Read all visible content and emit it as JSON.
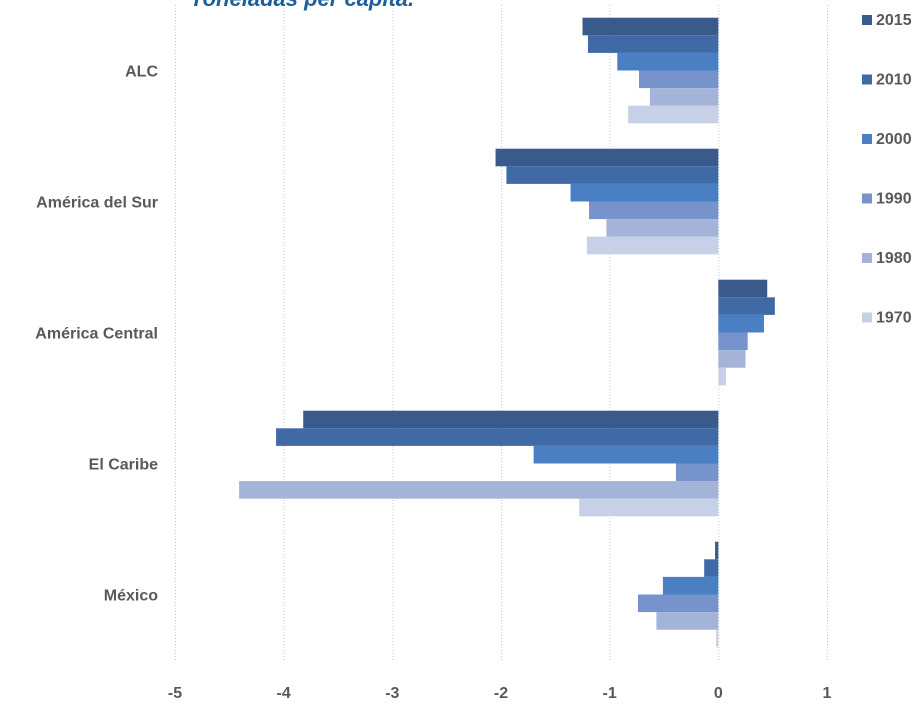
{
  "chart_data": {
    "type": "bar",
    "orientation": "horizontal",
    "title": "Toneladas per cápita.",
    "categories": [
      "ALC",
      "América del Sur",
      "América Central",
      "El Caribe",
      "México"
    ],
    "series": [
      {
        "name": "2015",
        "color": "#3a5a8c",
        "values": [
          -1.25,
          -2.05,
          0.45,
          -3.82,
          -0.03
        ]
      },
      {
        "name": "2010",
        "color": "#3f6aa6",
        "values": [
          -1.2,
          -1.95,
          0.52,
          -4.07,
          -0.13
        ]
      },
      {
        "name": "2000",
        "color": "#4a7fc4",
        "values": [
          -0.93,
          -1.36,
          0.42,
          -1.7,
          -0.51
        ]
      },
      {
        "name": "1990",
        "color": "#7693cc",
        "values": [
          -0.73,
          -1.19,
          0.27,
          -0.39,
          -0.74
        ]
      },
      {
        "name": "1980",
        "color": "#a3b4d8",
        "values": [
          -0.63,
          -1.03,
          0.25,
          -4.41,
          -0.57
        ]
      },
      {
        "name": "1970",
        "color": "#c6d0e6",
        "values": [
          -0.83,
          -1.21,
          0.07,
          -1.28,
          -0.02
        ]
      }
    ],
    "xlim": [
      -5,
      1
    ],
    "xticks": [
      "-5",
      "-4",
      "-3",
      "-2",
      "-1",
      "0",
      "1"
    ],
    "grid": "vertical dotted",
    "legend": "right"
  }
}
